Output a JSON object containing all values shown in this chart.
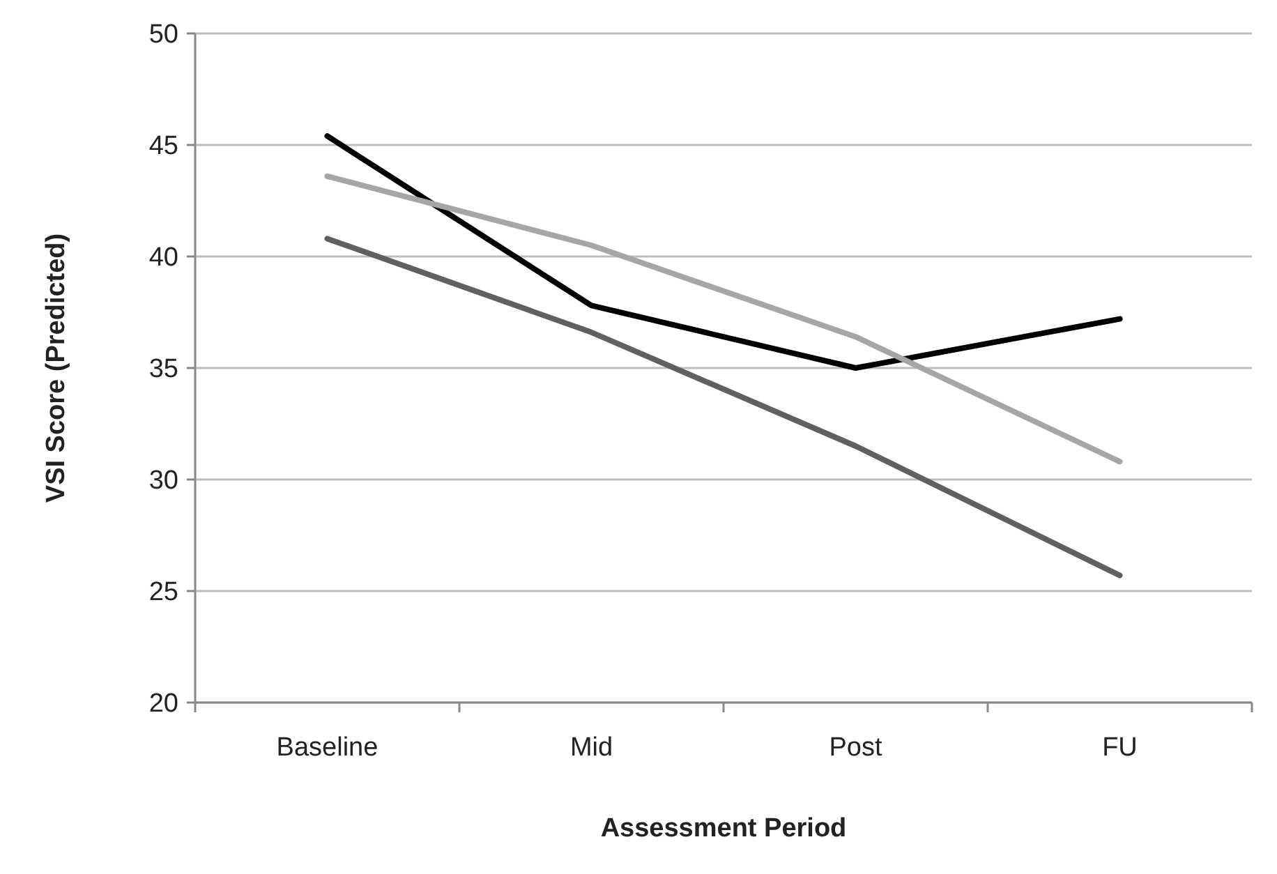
{
  "chart_data": {
    "type": "line",
    "xlabel": "Assessment Period",
    "ylabel": "VSI Score (Predicted)",
    "categories": [
      "Baseline",
      "Mid",
      "Post",
      "FU"
    ],
    "ylim": [
      20,
      50
    ],
    "yticks": [
      20,
      25,
      30,
      35,
      40,
      45,
      50
    ],
    "grid": "y",
    "marker": "none",
    "line_style": "solid",
    "series": [
      {
        "color": "#000000",
        "values": [
          45.4,
          37.8,
          35.0,
          37.2
        ]
      },
      {
        "color": "#a6a6a6",
        "values": [
          43.6,
          40.5,
          36.4,
          30.8
        ]
      },
      {
        "color": "#606060",
        "values": [
          40.8,
          36.6,
          31.5,
          25.7
        ]
      }
    ]
  }
}
